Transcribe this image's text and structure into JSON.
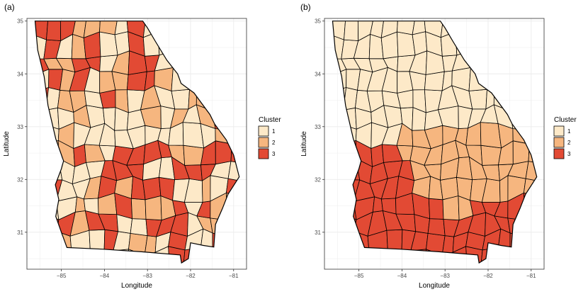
{
  "colors": {
    "cluster1": "#fde9c8",
    "cluster2": "#f6b67f",
    "cluster3": "#e24a34",
    "border": "#000000",
    "grid": "#ebebeb",
    "panel_border": "#333333"
  },
  "chart_data": [
    {
      "type": "choropleth",
      "panel_label": "(a)",
      "xlabel": "Longitude",
      "ylabel": "Latitude",
      "xlim": [
        -85.8,
        -80.7
      ],
      "ylim": [
        30.3,
        35.05
      ],
      "x_ticks": [
        -85,
        -84,
        -83,
        -82,
        -81
      ],
      "y_ticks": [
        31,
        32,
        33,
        34,
        35
      ],
      "legend": {
        "title": "Cluster",
        "entries": [
          "1",
          "2",
          "3"
        ],
        "placement": "right"
      },
      "pattern": "scattered"
    },
    {
      "type": "choropleth",
      "panel_label": "(b)",
      "xlabel": "Longitude",
      "ylabel": "Latitude",
      "xlim": [
        -85.8,
        -80.7
      ],
      "ylim": [
        30.3,
        35.05
      ],
      "x_ticks": [
        -85,
        -84,
        -83,
        -82,
        -81
      ],
      "y_ticks": [
        31,
        32,
        33,
        34,
        35
      ],
      "legend": {
        "title": "Cluster",
        "entries": [
          "1",
          "2",
          "3"
        ],
        "placement": "right"
      },
      "pattern": "regional"
    }
  ]
}
